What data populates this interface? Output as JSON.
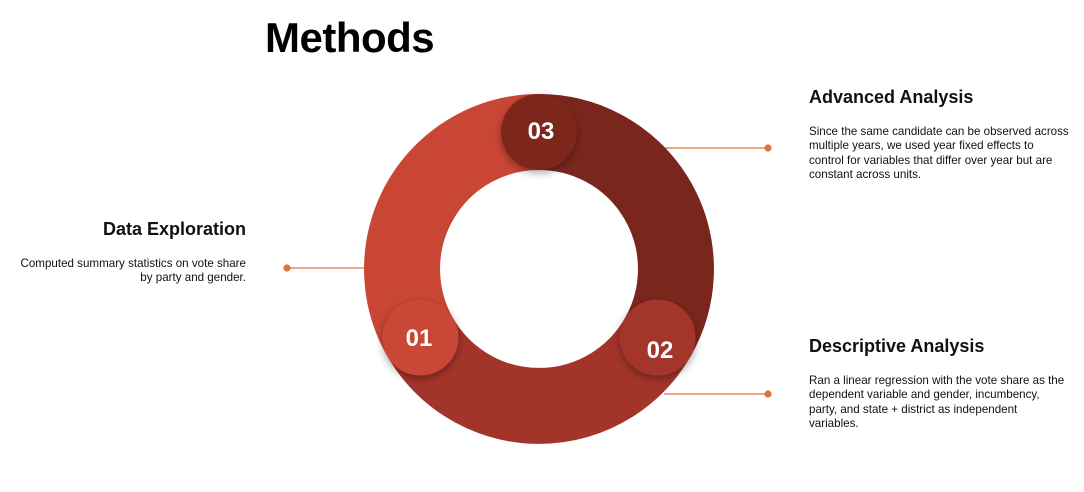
{
  "title": "Methods",
  "colors": {
    "accent_line": "#e0703f",
    "segment_01": "#c94634",
    "segment_02": "#a3342a",
    "segment_03": "#7b261d"
  },
  "steps": [
    {
      "number": "01",
      "heading": "Data Exploration",
      "description": "Computed summary statistics on vote share by party and gender."
    },
    {
      "number": "02",
      "heading": "Descriptive Analysis",
      "description": "Ran a linear regression with the vote share as the dependent variable and gender, incumbency, party, and state + district as independent variables."
    },
    {
      "number": "03",
      "heading": "Advanced Analysis",
      "description": "Since the same candidate can be observed across multiple years, we used year fixed effects to control for variables that differ over year but are constant across units."
    }
  ]
}
